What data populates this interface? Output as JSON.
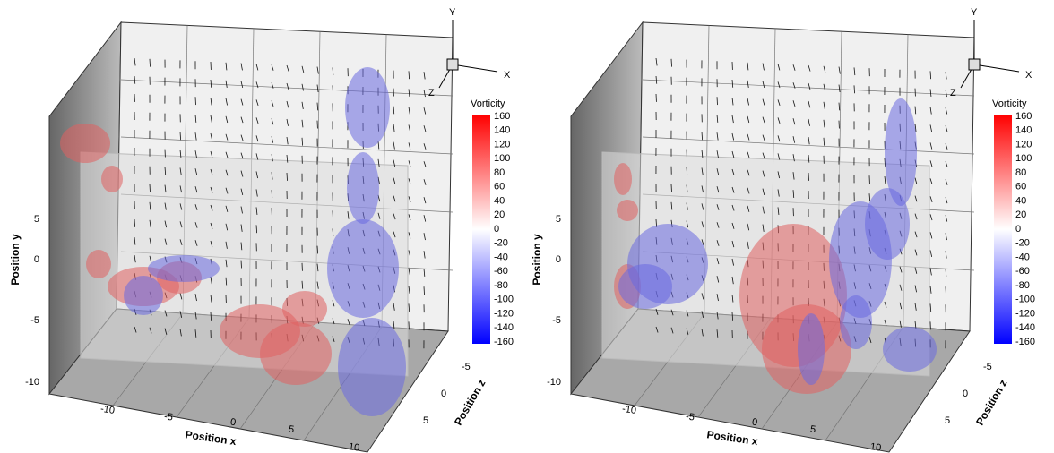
{
  "panels": [
    {
      "axis_labels": {
        "x": "Position x",
        "y": "Position y",
        "z": "Position z"
      },
      "triad": {
        "y": "Y",
        "x": "X",
        "z": "Z"
      },
      "xticks": [
        -10,
        -5,
        0,
        5,
        10
      ],
      "yticks": [
        5,
        0,
        -5,
        -10
      ],
      "zticks": [
        -5,
        0,
        5
      ],
      "colorbar": {
        "title": "Vorticity",
        "ticks": [
          160,
          140,
          120,
          100,
          80,
          60,
          40,
          20,
          0,
          -20,
          -40,
          -60,
          -80,
          -100,
          -120,
          -140,
          -160
        ]
      }
    },
    {
      "axis_labels": {
        "x": "Position x",
        "y": "Position y",
        "z": "Position z"
      },
      "triad": {
        "y": "Y",
        "x": "X",
        "z": "Z"
      },
      "xticks": [
        -10,
        -5,
        0,
        5,
        10
      ],
      "yticks": [
        5,
        0,
        -5,
        -10
      ],
      "zticks": [
        -5,
        0,
        5
      ],
      "colorbar": {
        "title": "Vorticity",
        "ticks": [
          160,
          140,
          120,
          100,
          80,
          60,
          40,
          20,
          0,
          -20,
          -40,
          -60,
          -80,
          -100,
          -120,
          -140,
          -160
        ]
      }
    }
  ]
}
